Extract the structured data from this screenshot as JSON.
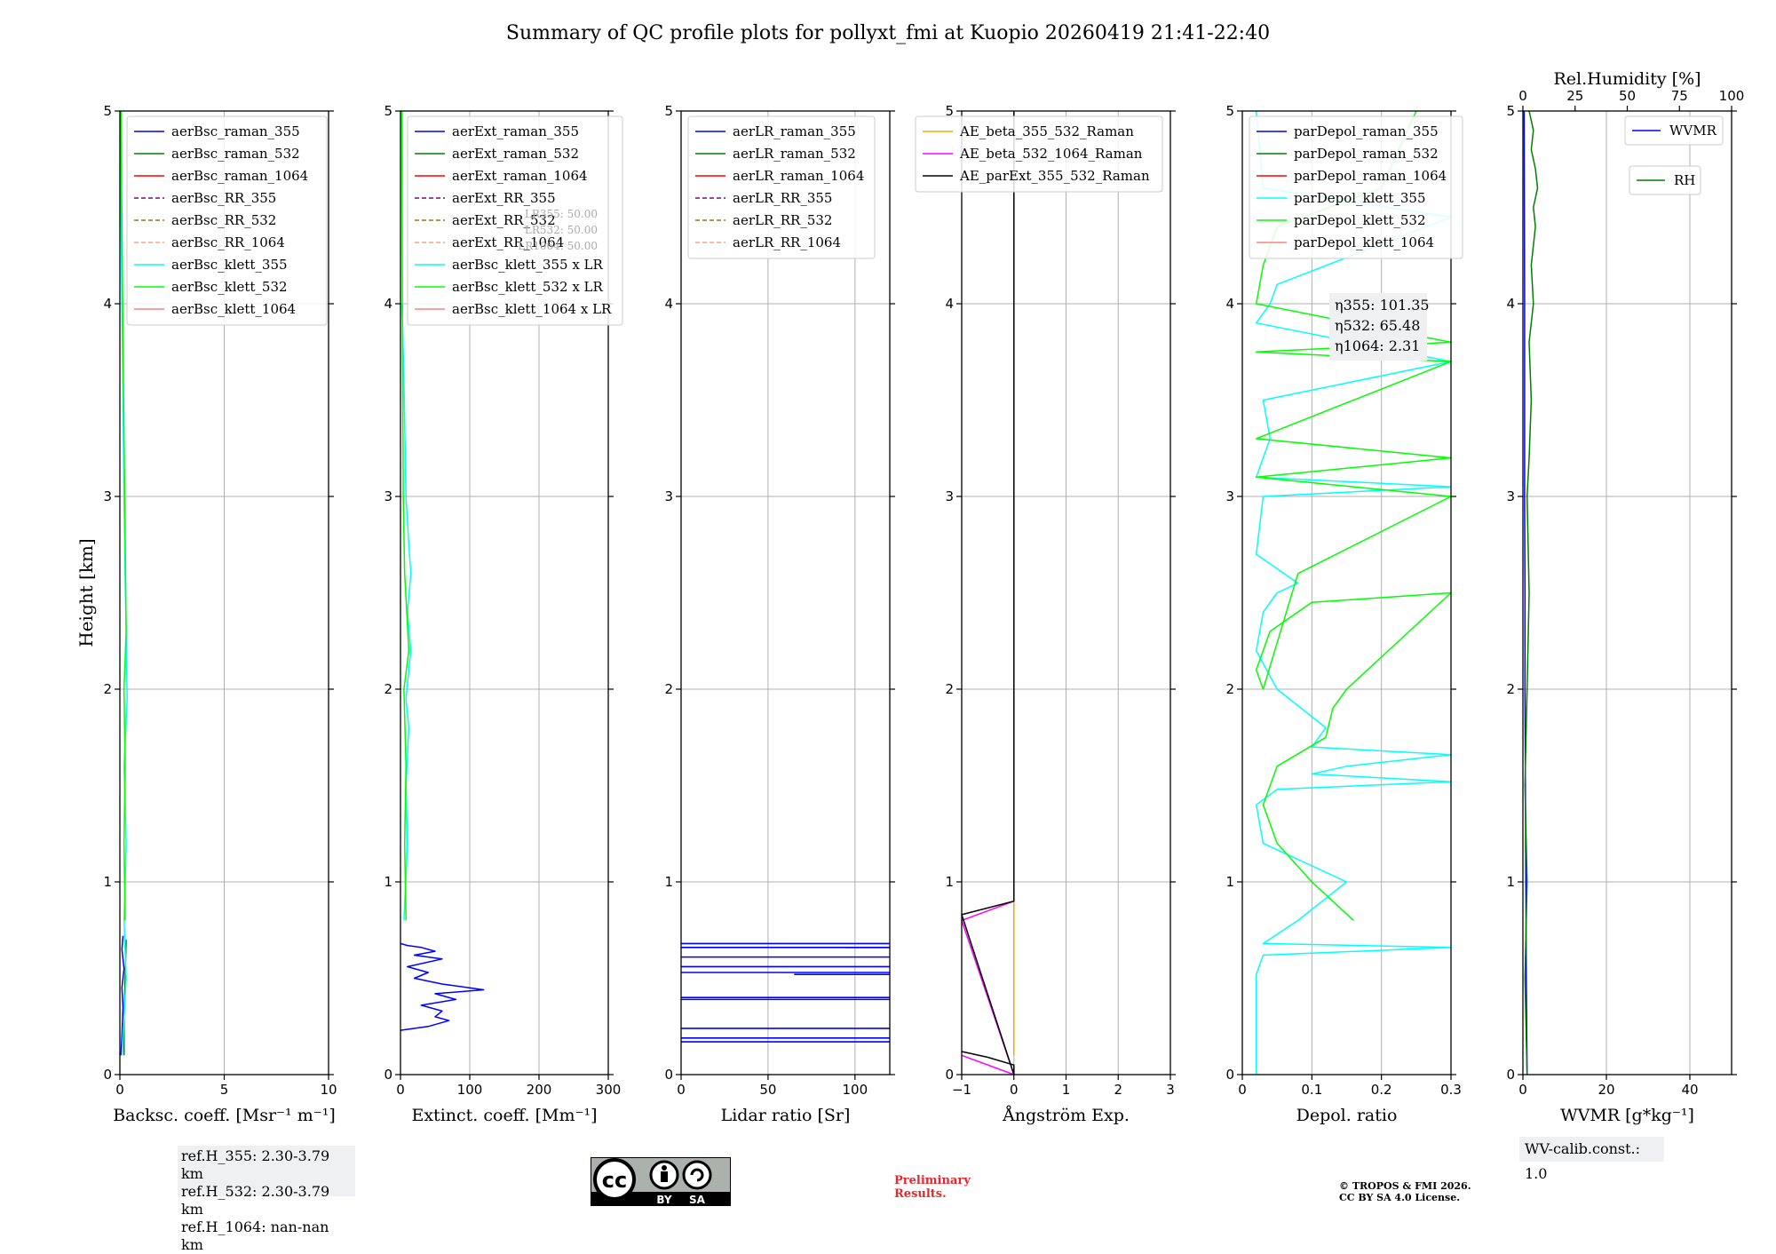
{
  "title": "Summary of QC profile plots for pollyxt_fmi at Kuopio 20260419 21:41-22:40",
  "colors": {
    "raman_355": "#0000ff",
    "raman_532": "#008000",
    "raman_1064": "#ff0000",
    "rr_355": "#800080",
    "rr_532": "#808000",
    "rr_1064": "#ffa07a",
    "klett_355": "#00ffff",
    "klett_532": "#00ff00",
    "klett_1064": "#ff8080",
    "ae_beta_355_532": "#ffa500",
    "ae_beta_532_1064": "#ff00ff",
    "ae_parext": "#000000",
    "wvmr": "#0000ff",
    "rh": "#008000",
    "prelim": "#e8262b",
    "grid": "#b0b0b0"
  },
  "chart_data": [
    {
      "type": "line",
      "panel": "backscatter",
      "ylabel": "Height [km]",
      "xlabel": "Backsc. coeff. [Msr⁻¹ m⁻¹]",
      "xlim": [
        0,
        10
      ],
      "xticks": [
        0,
        5,
        10
      ],
      "ylim": [
        0,
        5
      ],
      "yticks": [
        0,
        1,
        2,
        3,
        4,
        5
      ],
      "legend": [
        "aerBsc_raman_355",
        "aerBsc_raman_532",
        "aerBsc_raman_1064",
        "aerBsc_RR_355",
        "aerBsc_RR_532",
        "aerBsc_RR_1064",
        "aerBsc_klett_355",
        "aerBsc_klett_532",
        "aerBsc_klett_1064"
      ],
      "series": [
        {
          "name": "aerBsc_raman_355",
          "color": "raman_355",
          "x": [
            0.05,
            0.1,
            0.15,
            0.1,
            0.2,
            0.1,
            0.15
          ],
          "y": [
            0.1,
            0.2,
            0.35,
            0.45,
            0.55,
            0.65,
            0.72
          ]
        },
        {
          "name": "aerBsc_raman_532",
          "color": "raman_532",
          "x": [
            0.2,
            0.2,
            0.25,
            0.3
          ],
          "y": [
            0.1,
            0.3,
            0.5,
            0.7
          ]
        },
        {
          "name": "aerBsc_klett_355",
          "color": "klett_355",
          "x": [
            0.1,
            0.3,
            0.2,
            0.3,
            0.2,
            0.35,
            0.3,
            0.25,
            0.2,
            0.15,
            0.1,
            0.05,
            0.05
          ],
          "y": [
            0.1,
            0.5,
            0.8,
            1.2,
            1.6,
            1.95,
            2.3,
            2.6,
            3.0,
            3.5,
            4.0,
            4.5,
            5.0
          ]
        },
        {
          "name": "aerBsc_klett_532",
          "color": "klett_532",
          "x": [
            0.25,
            0.2,
            0.25,
            0.2,
            0.3,
            0.25,
            0.2,
            0.15,
            0.1,
            0.05
          ],
          "y": [
            0.8,
            1.2,
            1.6,
            2.0,
            2.3,
            2.8,
            3.3,
            3.8,
            4.4,
            5.0
          ]
        }
      ],
      "annotation": [
        "ref.H_355: 2.30-3.79 km",
        "ref.H_532: 2.30-3.79 km",
        "ref.H_1064: nan-nan km"
      ]
    },
    {
      "type": "line",
      "panel": "extinction",
      "xlabel": "Extinct. coeff. [Mm⁻¹]",
      "xlim": [
        0,
        300
      ],
      "xticks": [
        0,
        100,
        200,
        300
      ],
      "ylim": [
        0,
        5
      ],
      "yticks": [
        0,
        1,
        2,
        3,
        4,
        5
      ],
      "legend": [
        "aerExt_raman_355",
        "aerExt_raman_532",
        "aerExt_raman_1064",
        "aerExt_RR_355",
        "aerExt_RR_532",
        "aerExt_RR_1064",
        "aerBsc_klett_355 x LR",
        "aerBsc_klett_532 x LR",
        "aerBsc_klett_1064 x LR"
      ],
      "lr_labels": [
        "LR355: 50.00",
        "LR532: 50.00",
        "LR1064: 50.00"
      ],
      "series": [
        {
          "name": "aerExt_raman_355",
          "color": "raman_355",
          "x": [
            0,
            40,
            70,
            50,
            60,
            30,
            80,
            50,
            120,
            60,
            20,
            40,
            10,
            60,
            20,
            50,
            30,
            10,
            0
          ],
          "y": [
            0.23,
            0.25,
            0.28,
            0.3,
            0.33,
            0.36,
            0.39,
            0.42,
            0.44,
            0.47,
            0.5,
            0.53,
            0.56,
            0.6,
            0.62,
            0.64,
            0.66,
            0.67,
            0.68
          ]
        },
        {
          "name": "aerBsc_klett_355 x LR",
          "color": "klett_355",
          "x": [
            5,
            10,
            8,
            12,
            8,
            15,
            10,
            15,
            12,
            8,
            5,
            3,
            2
          ],
          "y": [
            0.8,
            1.2,
            1.5,
            1.8,
            1.95,
            2.2,
            2.4,
            2.6,
            2.75,
            3.0,
            3.6,
            3.9,
            4.0
          ]
        },
        {
          "name": "aerBsc_klett_532 x LR",
          "color": "klett_532",
          "x": [
            8,
            6,
            8,
            5,
            12,
            6,
            4,
            3,
            2
          ],
          "y": [
            0.8,
            1.2,
            1.6,
            2.0,
            2.2,
            2.6,
            3.0,
            3.8,
            5.0
          ]
        }
      ]
    },
    {
      "type": "line",
      "panel": "lidar_ratio",
      "xlabel": "Lidar ratio [Sr]",
      "xlim": [
        0,
        120
      ],
      "xticks": [
        0,
        50,
        100
      ],
      "ylim": [
        0,
        5
      ],
      "yticks": [
        0,
        1,
        2,
        3,
        4,
        5
      ],
      "legend": [
        "aerLR_raman_355",
        "aerLR_raman_532",
        "aerLR_raman_1064",
        "aerLR_RR_355",
        "aerLR_RR_532",
        "aerLR_RR_1064"
      ],
      "series": [
        {
          "name": "aerLR_raman_355",
          "color": "raman_355",
          "segments": [
            [
              0,
              0.17,
              120,
              0.17
            ],
            [
              0,
              0.19,
              120,
              0.19
            ],
            [
              0,
              0.24,
              120,
              0.24
            ],
            [
              0,
              0.39,
              120,
              0.39
            ],
            [
              0,
              0.4,
              120,
              0.4
            ],
            [
              0,
              0.53,
              120,
              0.53
            ],
            [
              0,
              0.56,
              120,
              0.56
            ],
            [
              0,
              0.61,
              120,
              0.61
            ],
            [
              0,
              0.66,
              120,
              0.66
            ],
            [
              0,
              0.68,
              120,
              0.68
            ],
            [
              65,
              0.52,
              120,
              0.52
            ],
            [
              95,
              0.66,
              120,
              0.66
            ]
          ]
        }
      ]
    },
    {
      "type": "line",
      "panel": "angstrom",
      "xlabel": "Ångström Exp.",
      "xlim": [
        -1,
        3
      ],
      "xticks": [
        -1,
        0,
        1,
        2,
        3
      ],
      "ylim": [
        0,
        5
      ],
      "yticks": [
        0,
        1,
        2,
        3,
        4,
        5
      ],
      "legend": [
        "AE_beta_355_532_Raman",
        "AE_beta_532_1064_Raman",
        "AE_parExt_355_532_Raman"
      ],
      "series": [
        {
          "name": "AE_beta_355_532_Raman",
          "color": "ae_beta_355_532",
          "x": [
            0,
            0,
            0,
            0
          ],
          "y": [
            0.1,
            0.2,
            0.7,
            0.9
          ]
        },
        {
          "name": "AE_beta_532_1064_Raman",
          "color": "ae_beta_532_1064",
          "x": [
            -1,
            0,
            -1,
            0
          ],
          "y": [
            0.1,
            0.0,
            0.8,
            0.9
          ]
        },
        {
          "name": "AE_parExt_355_532_Raman",
          "color": "ae_parext",
          "x": [
            -1,
            -0.5,
            0,
            0,
            -1,
            0,
            0
          ],
          "y": [
            0.12,
            0.09,
            0.05,
            0.0,
            0.83,
            0.9,
            5.0
          ]
        }
      ]
    },
    {
      "type": "line",
      "panel": "depolarization",
      "xlabel": "Depol. ratio",
      "xlim": [
        0,
        0.3
      ],
      "xticks": [
        0.0,
        0.1,
        0.2,
        0.3
      ],
      "ylim": [
        0,
        5
      ],
      "yticks": [
        0,
        1,
        2,
        3,
        4,
        5
      ],
      "legend": [
        "parDepol_raman_355",
        "parDepol_raman_532",
        "parDepol_raman_1064",
        "parDepol_klett_355",
        "parDepol_klett_532",
        "parDepol_klett_1064"
      ],
      "eta_labels": [
        "η355: 101.35",
        "η532: 65.48",
        "η1064: 2.31"
      ],
      "series": [
        {
          "name": "parDepol_klett_355",
          "color": "klett_355",
          "x": [
            0.02,
            0.02,
            0.03,
            0.3,
            0.03,
            0.08,
            0.15,
            0.03,
            0.02,
            0.05,
            0.3,
            0.1,
            0.15,
            0.3,
            0.1,
            0.12,
            0.05,
            0.02,
            0.03,
            0.05,
            0.08,
            0.02,
            0.03,
            0.3,
            0.02,
            0.04,
            0.03,
            0.3,
            0.02,
            0.04,
            0.05,
            0.3,
            0.03,
            0.02
          ],
          "y": [
            0.0,
            0.52,
            0.62,
            0.66,
            0.68,
            0.8,
            1.0,
            1.2,
            1.4,
            1.48,
            1.52,
            1.56,
            1.6,
            1.66,
            1.7,
            1.8,
            2.0,
            2.2,
            2.4,
            2.5,
            2.55,
            2.7,
            3.0,
            3.05,
            3.1,
            3.3,
            3.5,
            3.7,
            3.9,
            4.0,
            4.1,
            4.45,
            4.6,
            5.0
          ]
        },
        {
          "name": "parDepol_klett_532",
          "color": "klett_532",
          "x": [
            0.16,
            0.1,
            0.05,
            0.03,
            0.05,
            0.12,
            0.13,
            0.15,
            0.3,
            0.1,
            0.04,
            0.02,
            0.03,
            0.08,
            0.3,
            0.02,
            0.3,
            0.02,
            0.3,
            0.02,
            0.3,
            0.02,
            0.03,
            0.05,
            0.2,
            0.25
          ],
          "y": [
            0.8,
            1.0,
            1.2,
            1.4,
            1.6,
            1.75,
            1.9,
            2.0,
            2.5,
            2.45,
            2.3,
            2.1,
            2.0,
            2.6,
            3.0,
            3.1,
            3.2,
            3.3,
            3.7,
            3.75,
            3.8,
            4.0,
            4.2,
            4.4,
            4.6,
            5.0
          ]
        }
      ]
    },
    {
      "type": "line",
      "panel": "water_vapor",
      "xlabel": "WVMR [g*kg⁻¹]",
      "x2label": "Rel.Humidity [%]",
      "xlim": [
        0,
        50
      ],
      "xticks": [
        0,
        20,
        40
      ],
      "x2lim": [
        0,
        100
      ],
      "x2ticks": [
        0,
        25,
        50,
        75,
        100
      ],
      "ylim": [
        0,
        5
      ],
      "yticks": [
        0,
        1,
        2,
        3,
        4,
        5
      ],
      "legend": [
        "WVMR",
        "RH"
      ],
      "series": [
        {
          "name": "WVMR",
          "color": "wvmr",
          "x": [
            1,
            0.8,
            0.7,
            0.6,
            0.5,
            0.5,
            0.4,
            0.4,
            0.3
          ],
          "y": [
            0.0,
            0.5,
            1.0,
            1.5,
            2.0,
            2.5,
            3.0,
            4.0,
            5.0
          ]
        },
        {
          "name": "RH",
          "color": "rh",
          "x2": [
            2,
            1,
            2,
            1,
            2,
            3,
            2,
            3,
            4,
            3,
            5,
            4,
            6,
            5,
            7,
            6,
            4,
            5,
            3
          ],
          "y": [
            0.0,
            0.5,
            1.0,
            1.5,
            2.0,
            2.5,
            3.0,
            3.2,
            3.5,
            3.8,
            4.0,
            4.2,
            4.4,
            4.5,
            4.6,
            4.7,
            4.8,
            4.9,
            5.0
          ]
        }
      ],
      "annotation": "WV-calib.const.: 1.0"
    }
  ],
  "footer": {
    "ref_heights": [
      "ref.H_355: 2.30-3.79 km",
      "ref.H_532: 2.30-3.79 km",
      "ref.H_1064: nan-nan km"
    ],
    "wv_calib": "WV-calib.const.: 1.0",
    "preliminary": [
      "Preliminary",
      "Results."
    ],
    "copyright": [
      "© TROPOS & FMI 2026.",
      "CC BY SA 4.0 License."
    ],
    "cc_badge": [
      "cc",
      "BY",
      "SA"
    ]
  }
}
